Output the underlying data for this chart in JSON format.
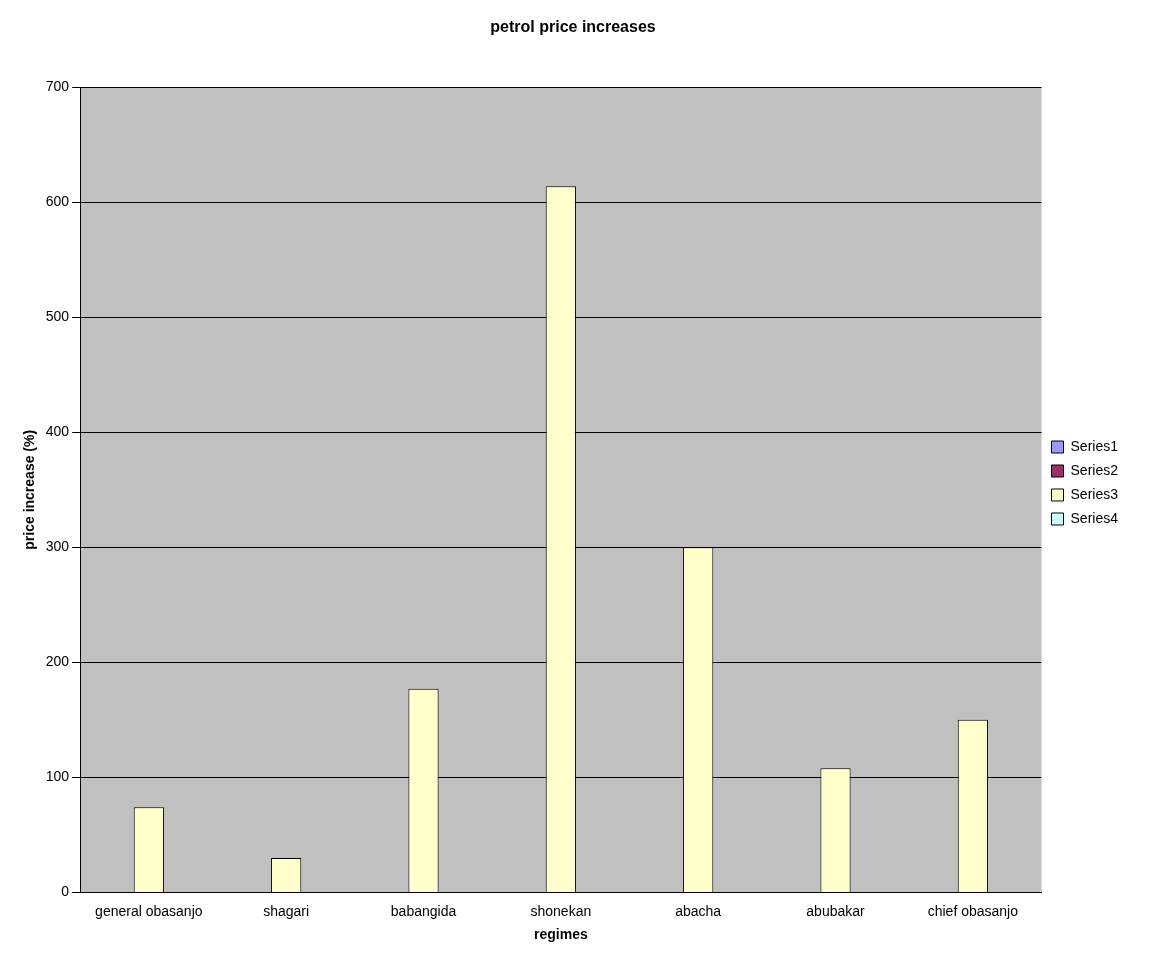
{
  "chart_data": {
    "type": "bar",
    "title": "petrol price increases",
    "xlabel": "regimes",
    "ylabel": "price increase (%)",
    "categories": [
      "general obasanjo",
      "shagari",
      "babangida",
      "shonekan",
      "abacha",
      "abubakar",
      "chief obasanjo"
    ],
    "series": [
      {
        "name": "Series1",
        "color": "#9999ff",
        "values": [
          null,
          null,
          null,
          null,
          null,
          null,
          null
        ]
      },
      {
        "name": "Series2",
        "color": "#993366",
        "values": [
          null,
          null,
          null,
          null,
          null,
          null,
          null
        ]
      },
      {
        "name": "Series3",
        "color": "#ffffcc",
        "values": [
          74,
          30,
          177,
          614,
          300,
          108,
          150
        ]
      },
      {
        "name": "Series4",
        "color": "#ccffff",
        "values": [
          null,
          null,
          null,
          null,
          null,
          null,
          null
        ]
      }
    ],
    "ylim": [
      0,
      700
    ],
    "yticks": [
      0,
      100,
      200,
      300,
      400,
      500,
      600,
      700
    ],
    "grid": "y",
    "legend": "right"
  }
}
